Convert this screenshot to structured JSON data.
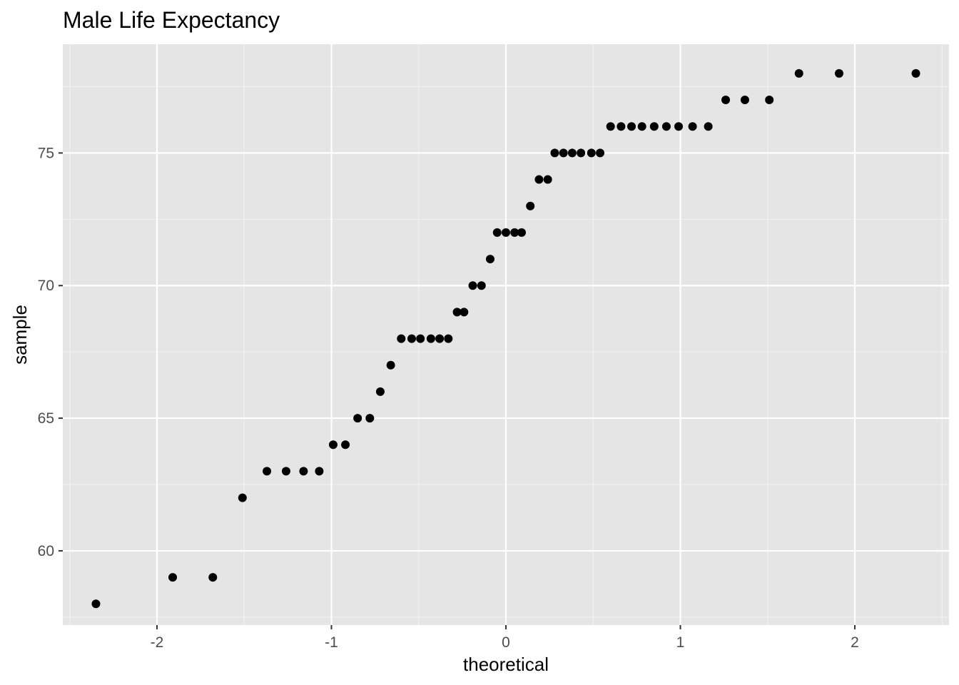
{
  "chart_data": {
    "type": "scatter",
    "title": "Male Life Expectancy",
    "xlabel": "theoretical",
    "ylabel": "sample",
    "xlim": [
      -2.54,
      2.54
    ],
    "ylim": [
      57.2,
      79.1
    ],
    "x_ticks": [
      -2,
      -1,
      0,
      1,
      2
    ],
    "x_tick_labels": [
      "-2",
      "-1",
      "0",
      "1",
      "2"
    ],
    "y_ticks": [
      60,
      65,
      70,
      75
    ],
    "y_tick_labels": [
      "60",
      "65",
      "70",
      "75"
    ],
    "grid": true,
    "legend": "none",
    "colors": {
      "panel_background": "#e5e5e5",
      "grid_major": "#ffffff",
      "point": "#000000",
      "tick_label": "#4d4d4d"
    },
    "points": [
      {
        "x": -2.35,
        "y": 58
      },
      {
        "x": -1.91,
        "y": 59
      },
      {
        "x": -1.68,
        "y": 59
      },
      {
        "x": -1.51,
        "y": 62
      },
      {
        "x": -1.37,
        "y": 63
      },
      {
        "x": -1.26,
        "y": 63
      },
      {
        "x": -1.16,
        "y": 63
      },
      {
        "x": -1.07,
        "y": 63
      },
      {
        "x": -0.99,
        "y": 64
      },
      {
        "x": -0.92,
        "y": 64
      },
      {
        "x": -0.85,
        "y": 65
      },
      {
        "x": -0.78,
        "y": 65
      },
      {
        "x": -0.72,
        "y": 66
      },
      {
        "x": -0.66,
        "y": 67
      },
      {
        "x": -0.6,
        "y": 68
      },
      {
        "x": -0.54,
        "y": 68
      },
      {
        "x": -0.49,
        "y": 68
      },
      {
        "x": -0.43,
        "y": 68
      },
      {
        "x": -0.38,
        "y": 68
      },
      {
        "x": -0.33,
        "y": 68
      },
      {
        "x": -0.28,
        "y": 69
      },
      {
        "x": -0.24,
        "y": 69
      },
      {
        "x": -0.19,
        "y": 70
      },
      {
        "x": -0.14,
        "y": 70
      },
      {
        "x": -0.09,
        "y": 71
      },
      {
        "x": -0.05,
        "y": 72
      },
      {
        "x": 0.0,
        "y": 72
      },
      {
        "x": 0.05,
        "y": 72
      },
      {
        "x": 0.09,
        "y": 72
      },
      {
        "x": 0.14,
        "y": 73
      },
      {
        "x": 0.19,
        "y": 74
      },
      {
        "x": 0.24,
        "y": 74
      },
      {
        "x": 0.28,
        "y": 75
      },
      {
        "x": 0.33,
        "y": 75
      },
      {
        "x": 0.38,
        "y": 75
      },
      {
        "x": 0.43,
        "y": 75
      },
      {
        "x": 0.49,
        "y": 75
      },
      {
        "x": 0.54,
        "y": 75
      },
      {
        "x": 0.6,
        "y": 76
      },
      {
        "x": 0.66,
        "y": 76
      },
      {
        "x": 0.72,
        "y": 76
      },
      {
        "x": 0.78,
        "y": 76
      },
      {
        "x": 0.85,
        "y": 76
      },
      {
        "x": 0.92,
        "y": 76
      },
      {
        "x": 0.99,
        "y": 76
      },
      {
        "x": 1.07,
        "y": 76
      },
      {
        "x": 1.16,
        "y": 76
      },
      {
        "x": 1.26,
        "y": 77
      },
      {
        "x": 1.37,
        "y": 77
      },
      {
        "x": 1.51,
        "y": 77
      },
      {
        "x": 1.68,
        "y": 78
      },
      {
        "x": 1.91,
        "y": 78
      },
      {
        "x": 2.35,
        "y": 78
      }
    ]
  }
}
